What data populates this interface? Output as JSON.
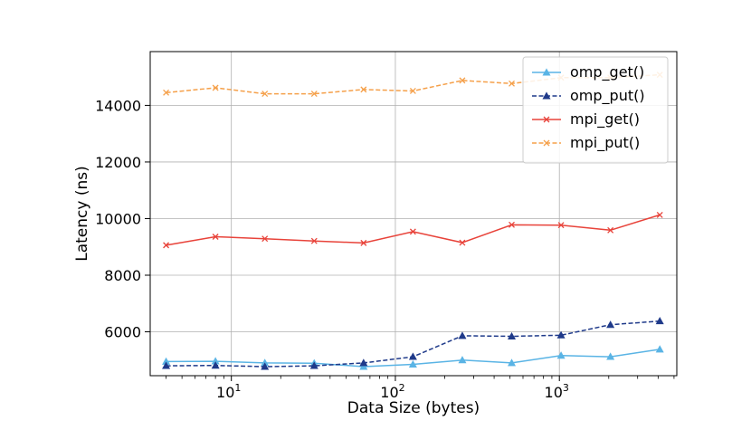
{
  "chart_data": {
    "type": "line",
    "xscale": "log",
    "xlabel": "Data Size (bytes)",
    "ylabel": "Latency (ns)",
    "xlim": [
      3.2,
      5200
    ],
    "ylim": [
      4450,
      15900
    ],
    "grid": true,
    "legend_position": "top-right",
    "x_ticks": [
      {
        "value": 10,
        "base": "10",
        "exp": "1"
      },
      {
        "value": 100,
        "base": "10",
        "exp": "2"
      },
      {
        "value": 1000,
        "base": "10",
        "exp": "3"
      }
    ],
    "y_ticks": [
      6000,
      8000,
      10000,
      12000,
      14000
    ],
    "x": [
      4,
      8,
      16,
      32,
      64,
      128,
      256,
      512,
      1024,
      2048,
      4096
    ],
    "series": [
      {
        "name": "omp_get()",
        "color": "#5ab4e5",
        "marker": "triangle",
        "dash": "solid",
        "values": [
          4950,
          4960,
          4900,
          4890,
          4770,
          4850,
          5000,
          4900,
          5160,
          5120,
          5380
        ]
      },
      {
        "name": "omp_put()",
        "color": "#1f3a8a",
        "marker": "triangle",
        "dash": "dashed",
        "values": [
          4800,
          4810,
          4770,
          4800,
          4900,
          5120,
          5860,
          5840,
          5880,
          6250,
          6380
        ]
      },
      {
        "name": "mpi_get()",
        "color": "#e8433a",
        "marker": "x",
        "dash": "solid",
        "values": [
          9060,
          9360,
          9290,
          9210,
          9140,
          9540,
          9150,
          9780,
          9770,
          9590,
          10130
        ]
      },
      {
        "name": "mpi_put()",
        "color": "#f5a04a",
        "marker": "x",
        "dash": "dashed",
        "values": [
          14450,
          14620,
          14410,
          14410,
          14560,
          14510,
          14880,
          14770,
          14980,
          14980,
          15080
        ]
      }
    ]
  }
}
